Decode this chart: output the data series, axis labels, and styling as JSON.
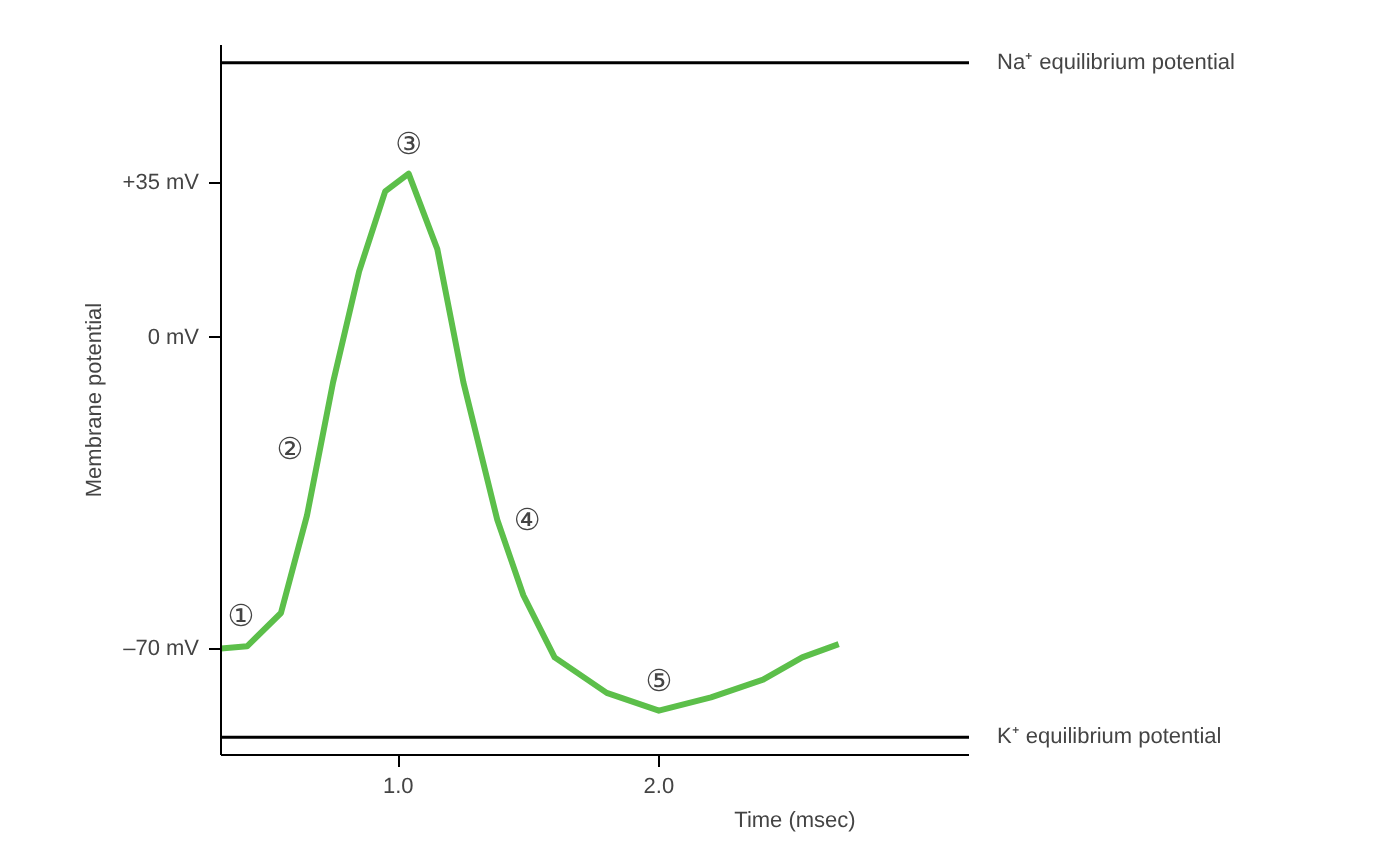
{
  "chart_data": {
    "type": "line",
    "xlabel": "Time (msec)",
    "ylabel": "Membrane potential",
    "xlim": [
      0.32,
      3.19
    ],
    "ylim": [
      -94,
      66
    ],
    "xticks": [
      {
        "value": 1,
        "label": "1.0"
      },
      {
        "value": 2,
        "label": "2.0"
      }
    ],
    "yticks": [
      {
        "value": 35,
        "label": "+35 mV"
      },
      {
        "value": 0,
        "label": "0 mV"
      },
      {
        "value": -70,
        "label": "–70 mV"
      }
    ],
    "x": [
      0.32,
      0.42,
      0.55,
      0.65,
      0.7,
      0.75,
      0.85,
      0.95,
      1.04,
      1.15,
      1.25,
      1.38,
      1.48,
      1.6,
      1.8,
      2.0,
      2.2,
      2.4,
      2.55,
      2.69
    ],
    "series": [
      {
        "color": "#5cbf4a",
        "values": [
          -70,
          -69.5,
          -62,
          -40,
          -25,
          -10,
          15,
          33,
          37,
          20,
          -10,
          -41,
          -58,
          -72,
          -80,
          -84,
          -81,
          -77,
          -72,
          -69
        ]
      }
    ],
    "ref_lines": [
      {
        "axis": "y",
        "value": 62,
        "label": "Na⁺ equilibrium potential",
        "color": "#000000"
      },
      {
        "axis": "y",
        "value": -90,
        "label": "K⁺ equilibrium potential",
        "color": "#000000"
      }
    ],
    "annotations": [
      {
        "text": "①",
        "x": 0.42,
        "y": -69.5
      },
      {
        "text": "②",
        "x": 0.7,
        "y": -25
      },
      {
        "text": "③",
        "x": 1.04,
        "y": 37
      },
      {
        "text": "④",
        "x": 1.38,
        "y": -41
      },
      {
        "text": "⑤",
        "x": 2.0,
        "y": -84
      }
    ],
    "grid": false,
    "marker": "none"
  }
}
